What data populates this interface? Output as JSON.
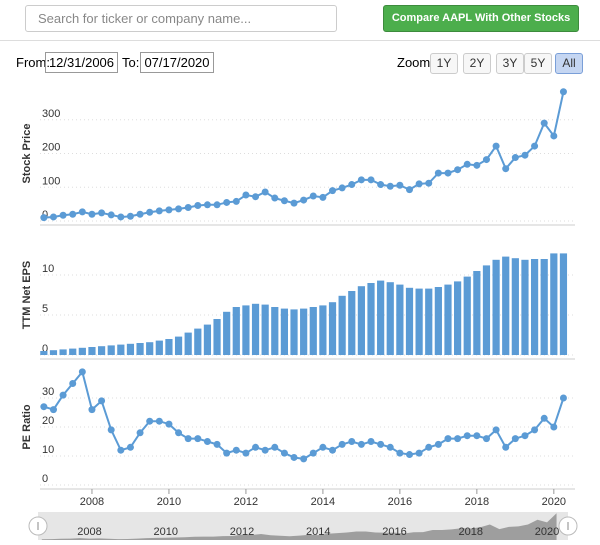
{
  "search": {
    "placeholder": "Search for ticker or company name..."
  },
  "compare_button": "Compare AAPL With Other Stocks",
  "range": {
    "from_label": "From:",
    "from": "12/31/2006",
    "to_label": "To:",
    "to": "07/17/2020"
  },
  "zoom": {
    "label": "Zoom:",
    "options": [
      "1Y",
      "2Y",
      "3Y",
      "5Y",
      "All"
    ],
    "selected": "All"
  },
  "chart_data": [
    {
      "type": "line",
      "ylabel": "Stock Price",
      "x": [
        2006.75,
        2007,
        2007.25,
        2007.5,
        2007.75,
        2008,
        2008.25,
        2008.5,
        2008.75,
        2009,
        2009.25,
        2009.5,
        2009.75,
        2010,
        2010.25,
        2010.5,
        2010.75,
        2011,
        2011.25,
        2011.5,
        2011.75,
        2012,
        2012.25,
        2012.5,
        2012.75,
        2013,
        2013.25,
        2013.5,
        2013.75,
        2014,
        2014.25,
        2014.5,
        2014.75,
        2015,
        2015.25,
        2015.5,
        2015.75,
        2016,
        2016.25,
        2016.5,
        2016.75,
        2017,
        2017.25,
        2017.5,
        2017.75,
        2018,
        2018.25,
        2018.5,
        2018.75,
        2019,
        2019.25,
        2019.5,
        2019.75,
        2020,
        2020.25
      ],
      "series": [
        {
          "color": "#5b9bd5",
          "values": [
            10,
            12,
            17,
            20,
            27,
            20,
            24,
            18,
            12,
            14,
            20,
            26,
            30,
            33,
            36,
            40,
            46,
            48,
            48,
            55,
            58,
            77,
            72,
            86,
            68,
            60,
            53,
            62,
            74,
            70,
            90,
            98,
            108,
            122,
            122,
            108,
            103,
            106,
            93,
            110,
            112,
            142,
            142,
            152,
            168,
            165,
            182,
            222,
            155,
            188,
            195,
            222,
            290,
            252,
            383
          ]
        }
      ],
      "xlim": [
        2006.65,
        2020.55
      ],
      "ylim": [
        0,
        400
      ],
      "yticks": [
        0,
        100,
        200,
        300
      ],
      "grid": true
    },
    {
      "type": "bar",
      "ylabel": "TTM Net EPS",
      "x": [
        2006.75,
        2007,
        2007.25,
        2007.5,
        2007.75,
        2008,
        2008.25,
        2008.5,
        2008.75,
        2009,
        2009.25,
        2009.5,
        2009.75,
        2010,
        2010.25,
        2010.5,
        2010.75,
        2011,
        2011.25,
        2011.5,
        2011.75,
        2012,
        2012.25,
        2012.5,
        2012.75,
        2013,
        2013.25,
        2013.5,
        2013.75,
        2014,
        2014.25,
        2014.5,
        2014.75,
        2015,
        2015.25,
        2015.5,
        2015.75,
        2016,
        2016.25,
        2016.5,
        2016.75,
        2017,
        2017.25,
        2017.5,
        2017.75,
        2018,
        2018.25,
        2018.5,
        2018.75,
        2019,
        2019.25,
        2019.5,
        2019.75,
        2020,
        2020.25
      ],
      "series": [
        {
          "color": "#5b9bd5",
          "values": [
            0.5,
            0.6,
            0.7,
            0.8,
            0.9,
            1.0,
            1.1,
            1.2,
            1.3,
            1.4,
            1.5,
            1.6,
            1.8,
            2.0,
            2.3,
            2.8,
            3.3,
            3.8,
            4.5,
            5.4,
            6.0,
            6.2,
            6.4,
            6.3,
            6.0,
            5.8,
            5.7,
            5.8,
            6.0,
            6.2,
            6.6,
            7.4,
            8.0,
            8.6,
            9.0,
            9.3,
            9.1,
            8.8,
            8.4,
            8.3,
            8.3,
            8.5,
            8.8,
            9.2,
            9.8,
            10.5,
            11.2,
            11.9,
            12.3,
            12.1,
            11.9,
            12.0,
            12.0,
            12.7,
            12.7
          ]
        }
      ],
      "xlim": [
        2006.65,
        2020.55
      ],
      "ylim": [
        0,
        15
      ],
      "yticks": [
        0,
        5,
        10
      ],
      "grid": true
    },
    {
      "type": "line",
      "ylabel": "PE Ratio",
      "x": [
        2006.75,
        2007,
        2007.25,
        2007.5,
        2007.75,
        2008,
        2008.25,
        2008.5,
        2008.75,
        2009,
        2009.25,
        2009.5,
        2009.75,
        2010,
        2010.25,
        2010.5,
        2010.75,
        2011,
        2011.25,
        2011.5,
        2011.75,
        2012,
        2012.25,
        2012.5,
        2012.75,
        2013,
        2013.25,
        2013.5,
        2013.75,
        2014,
        2014.25,
        2014.5,
        2014.75,
        2015,
        2015.25,
        2015.5,
        2015.75,
        2016,
        2016.25,
        2016.5,
        2016.75,
        2017,
        2017.25,
        2017.5,
        2017.75,
        2018,
        2018.25,
        2018.5,
        2018.75,
        2019,
        2019.25,
        2019.5,
        2019.75,
        2020,
        2020.25
      ],
      "series": [
        {
          "color": "#5b9bd5",
          "values": [
            27,
            26,
            31,
            35,
            39,
            26,
            29,
            19,
            12,
            13,
            18,
            22,
            22,
            21,
            18,
            16,
            16,
            15,
            14,
            11,
            12,
            11,
            13,
            12,
            13,
            11,
            9.5,
            9,
            11,
            13,
            12,
            14,
            15,
            14,
            15,
            14,
            13,
            11,
            10.5,
            11,
            13,
            14,
            16,
            16,
            17,
            17,
            16,
            19,
            13,
            16,
            17,
            19,
            23,
            20,
            30
          ]
        }
      ],
      "xlim": [
        2006.65,
        2020.55
      ],
      "ylim": [
        0,
        40
      ],
      "yticks": [
        0,
        10,
        20,
        30
      ],
      "xticks": [
        2008,
        2010,
        2012,
        2014,
        2016,
        2018,
        2020
      ],
      "grid": true
    }
  ]
}
